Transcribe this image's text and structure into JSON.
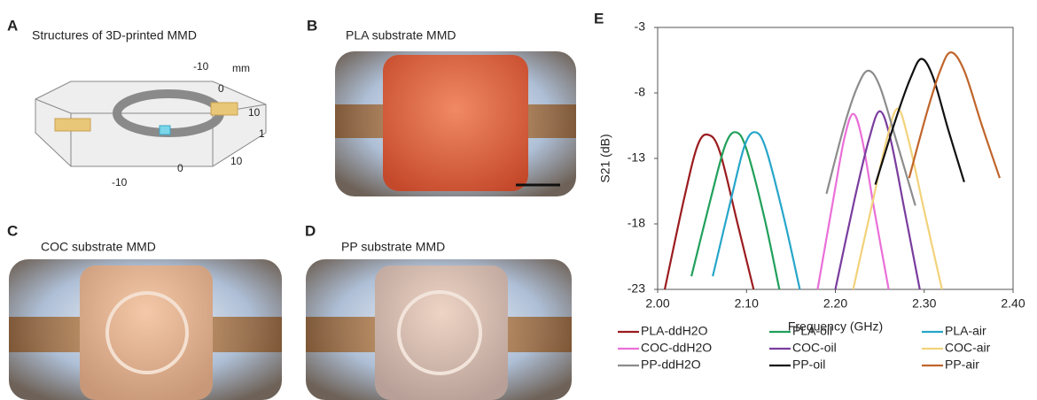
{
  "panels": {
    "A": {
      "letter": "A",
      "title": "Structures of 3D-printed MMD",
      "labels": [
        "-10",
        "mm",
        "0",
        "10",
        "1",
        "10",
        "0",
        "-10"
      ]
    },
    "B": {
      "letter": "B",
      "title": "PLA substrate MMD"
    },
    "C": {
      "letter": "C",
      "title": "COC substrate MMD"
    },
    "D": {
      "letter": "D",
      "title": "PP substrate MMD"
    },
    "E": {
      "letter": "E"
    }
  },
  "chart_data": {
    "type": "line",
    "x_label": "Frequency (GHz)",
    "y_label": "S21 (dB)",
    "xlim": [
      2,
      2.4
    ],
    "xticks": [
      {
        "value": 2,
        "label": "2.00"
      },
      {
        "value": 2.1,
        "label": "2.10"
      },
      {
        "value": 2.2,
        "label": "2.20"
      },
      {
        "value": 2.3,
        "label": "2.30"
      },
      {
        "value": 2.4,
        "label": "2.40"
      }
    ],
    "ylim": [
      -23,
      -3
    ],
    "yticks": [
      -23,
      -18,
      -13,
      -8,
      -3
    ],
    "series": [
      {
        "name": "PLA-ddH2O",
        "color": "#9b1c1f",
        "x": [
          2.008,
          2.03,
          2.045,
          2.057,
          2.07,
          2.09,
          2.108
        ],
        "values": [
          -23,
          -16,
          -12,
          -11.2,
          -12.5,
          -18,
          -23
        ]
      },
      {
        "name": "PLA-oil",
        "color": "#21a05b",
        "x": [
          2.038,
          2.06,
          2.076,
          2.088,
          2.1,
          2.12,
          2.137
        ],
        "values": [
          -22,
          -16,
          -12,
          -11,
          -12.3,
          -17.5,
          -23
        ]
      },
      {
        "name": "PLA-air",
        "color": "#27a6c9",
        "x": [
          2.062,
          2.083,
          2.098,
          2.11,
          2.122,
          2.142,
          2.16
        ],
        "values": [
          -22,
          -16,
          -12,
          -11,
          -12.3,
          -17.5,
          -23
        ]
      },
      {
        "name": "COC-ddH2O",
        "color": "#ea6fd8",
        "x": [
          2.18,
          2.198,
          2.21,
          2.22,
          2.23,
          2.244,
          2.26
        ],
        "values": [
          -23,
          -16,
          -11.5,
          -9.6,
          -11.5,
          -17,
          -23
        ]
      },
      {
        "name": "COC-oil",
        "color": "#7a3d9e",
        "x": [
          2.2,
          2.222,
          2.238,
          2.25,
          2.262,
          2.278,
          2.295
        ],
        "values": [
          -23,
          -16,
          -11.5,
          -9.4,
          -11.5,
          -17,
          -23
        ]
      },
      {
        "name": "COC-air",
        "color": "#f2d27a",
        "x": [
          2.22,
          2.243,
          2.258,
          2.27,
          2.282,
          2.3,
          2.32
        ],
        "values": [
          -23,
          -16,
          -11.5,
          -9.2,
          -11.5,
          -17,
          -23
        ]
      },
      {
        "name": "PP-ddH2O",
        "color": "#8c8c8c",
        "x": [
          2.19,
          2.21,
          2.225,
          2.237,
          2.25,
          2.268,
          2.29
        ],
        "values": [
          -15.7,
          -10.5,
          -7.5,
          -6.3,
          -7.5,
          -11.5,
          -16.6
        ]
      },
      {
        "name": "PP-oil",
        "color": "#111111",
        "x": [
          2.245,
          2.268,
          2.285,
          2.297,
          2.31,
          2.327,
          2.345
        ],
        "values": [
          -15,
          -10,
          -6.8,
          -5.4,
          -6.8,
          -10.8,
          -14.8
        ]
      },
      {
        "name": "PP-air",
        "color": "#c0652b",
        "x": [
          2.283,
          2.303,
          2.318,
          2.33,
          2.345,
          2.365,
          2.385
        ],
        "values": [
          -14.5,
          -9.5,
          -6.3,
          -4.9,
          -6.3,
          -10.5,
          -14.5
        ]
      }
    ]
  }
}
